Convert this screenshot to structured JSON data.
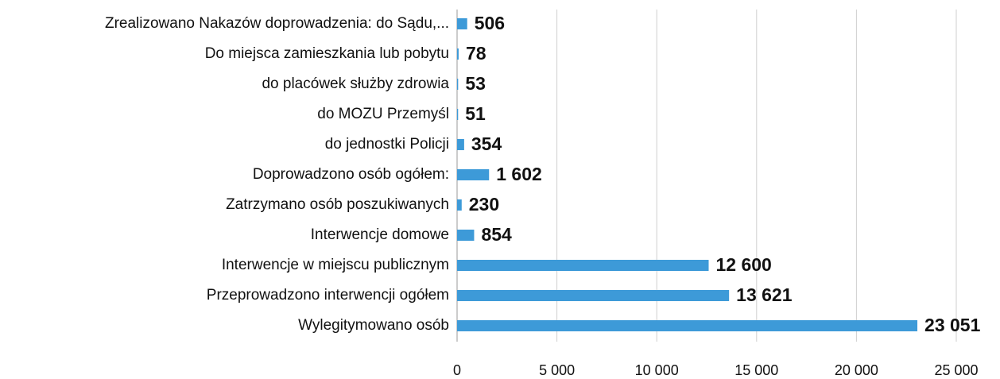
{
  "chart_data": {
    "type": "bar",
    "orientation": "horizontal",
    "categories": [
      "Zrealizowano Nakazów doprowadzenia: do Sądu,...",
      "Do miejsca zamieszkania lub pobytu",
      "do placówek służby zdrowia",
      "do MOZU Przemyśl",
      "do jednostki Policji",
      "Doprowadzono osób ogółem:",
      "Zatrzymano osób poszukiwanych",
      "Interwencje domowe",
      "Interwencje w miejscu publicznym",
      "Przeprowadzono interwencji ogółem",
      "Wylegitymowano osób"
    ],
    "values": [
      506,
      78,
      53,
      51,
      354,
      1602,
      230,
      854,
      12600,
      13621,
      23051
    ],
    "value_labels": [
      "506",
      "78",
      "53",
      "51",
      "354",
      "1 602",
      "230",
      "854",
      "12 600",
      "13 621",
      "23 051"
    ],
    "color": "#3d9ad8",
    "xlim": [
      0,
      25000
    ],
    "xticks": [
      0,
      {
        "value": 5000,
        "label": "5 000"
      },
      {
        "value": 10000,
        "label": "10 000"
      },
      {
        "value": 15000,
        "label": "15 000"
      },
      {
        "value": 20000,
        "label": "20 000"
      },
      {
        "value": 25000,
        "label": "25 000"
      }
    ],
    "grid": true
  }
}
